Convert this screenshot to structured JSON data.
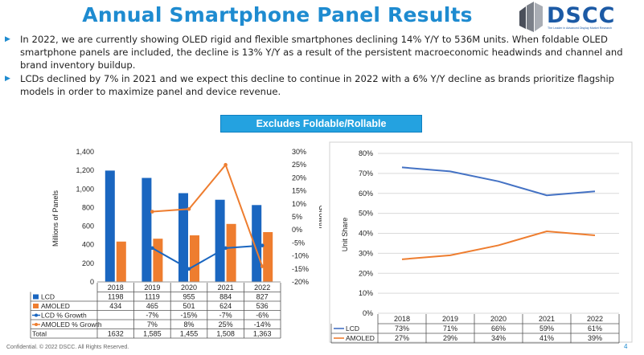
{
  "header": {
    "title": "Annual Smartphone Panel Results",
    "logo_text": "DSCC",
    "logo_tagline": "The Leader in Advanced Display Market Research"
  },
  "bullets": [
    "In 2022, we are currently showing OLED rigid and flexible smartphones declining 14% Y/Y to 536M units. When foldable OLED smartphone panels are included, the decline is 13% Y/Y as a result of the persistent macroeconomic headwinds and channel and brand inventory buildup.",
    "LCDs declined by 7% in 2021 and we expect this decline to continue in 2022 with a 6% Y/Y decline as brands prioritize flagship models in order to maximize panel and device revenue."
  ],
  "banner": "Excludes Foldable/Rollable",
  "footer": "Confidential. © 2022 DSCC. All Rights Reserved.",
  "page_number": "4",
  "colors": {
    "lcd": "#1a66c0",
    "amoled": "#ee7d2f",
    "lcd_line": "#4472c4",
    "accent": "#1e8bd0"
  },
  "chart_data": [
    {
      "type": "bar",
      "categories": [
        "2018",
        "2019",
        "2020",
        "2021",
        "2022"
      ],
      "ylabel": "Millions of Panels",
      "y2label": "Growth",
      "ylim": [
        0,
        1400
      ],
      "yticks": [
        "0",
        "200",
        "400",
        "600",
        "800",
        "1,000",
        "1,200",
        "1,400"
      ],
      "y2lim": [
        -20,
        30
      ],
      "y2ticks": [
        "-20%",
        "-15%",
        "-10%",
        "-5%",
        "0%",
        "5%",
        "10%",
        "15%",
        "20%",
        "25%",
        "30%"
      ],
      "series": [
        {
          "name": "LCD",
          "kind": "bar",
          "values": [
            1198,
            1119,
            955,
            884,
            827
          ],
          "labels": [
            "1198",
            "1119",
            "955",
            "884",
            "827"
          ]
        },
        {
          "name": "AMOLED",
          "kind": "bar",
          "values": [
            434,
            465,
            501,
            624,
            536
          ],
          "labels": [
            "434",
            "465",
            "501",
            "624",
            "536"
          ]
        },
        {
          "name": "LCD % Growth",
          "kind": "line",
          "values": [
            null,
            -7,
            -15,
            -7,
            -6
          ],
          "labels": [
            "",
            "-7%",
            "-15%",
            "-7%",
            "-6%"
          ]
        },
        {
          "name": "AMOLED % Growth",
          "kind": "line",
          "values": [
            null,
            7,
            8,
            25,
            -14
          ],
          "labels": [
            "",
            "7%",
            "8%",
            "25%",
            "-14%"
          ]
        }
      ],
      "total": {
        "name": "Total",
        "labels": [
          "1632",
          "1,585",
          "1,455",
          "1,508",
          "1,363"
        ]
      }
    },
    {
      "type": "line",
      "categories": [
        "2018",
        "2019",
        "2020",
        "2021",
        "2022"
      ],
      "ylabel": "Unit Share",
      "ylim": [
        0,
        80
      ],
      "yticks": [
        "0%",
        "10%",
        "20%",
        "30%",
        "40%",
        "50%",
        "60%",
        "70%",
        "80%"
      ],
      "series": [
        {
          "name": "LCD",
          "values": [
            73,
            71,
            66,
            59,
            61
          ],
          "labels": [
            "73%",
            "71%",
            "66%",
            "59%",
            "61%"
          ]
        },
        {
          "name": "AMOLED",
          "values": [
            27,
            29,
            34,
            41,
            39
          ],
          "labels": [
            "27%",
            "29%",
            "34%",
            "41%",
            "39%"
          ]
        }
      ]
    }
  ]
}
